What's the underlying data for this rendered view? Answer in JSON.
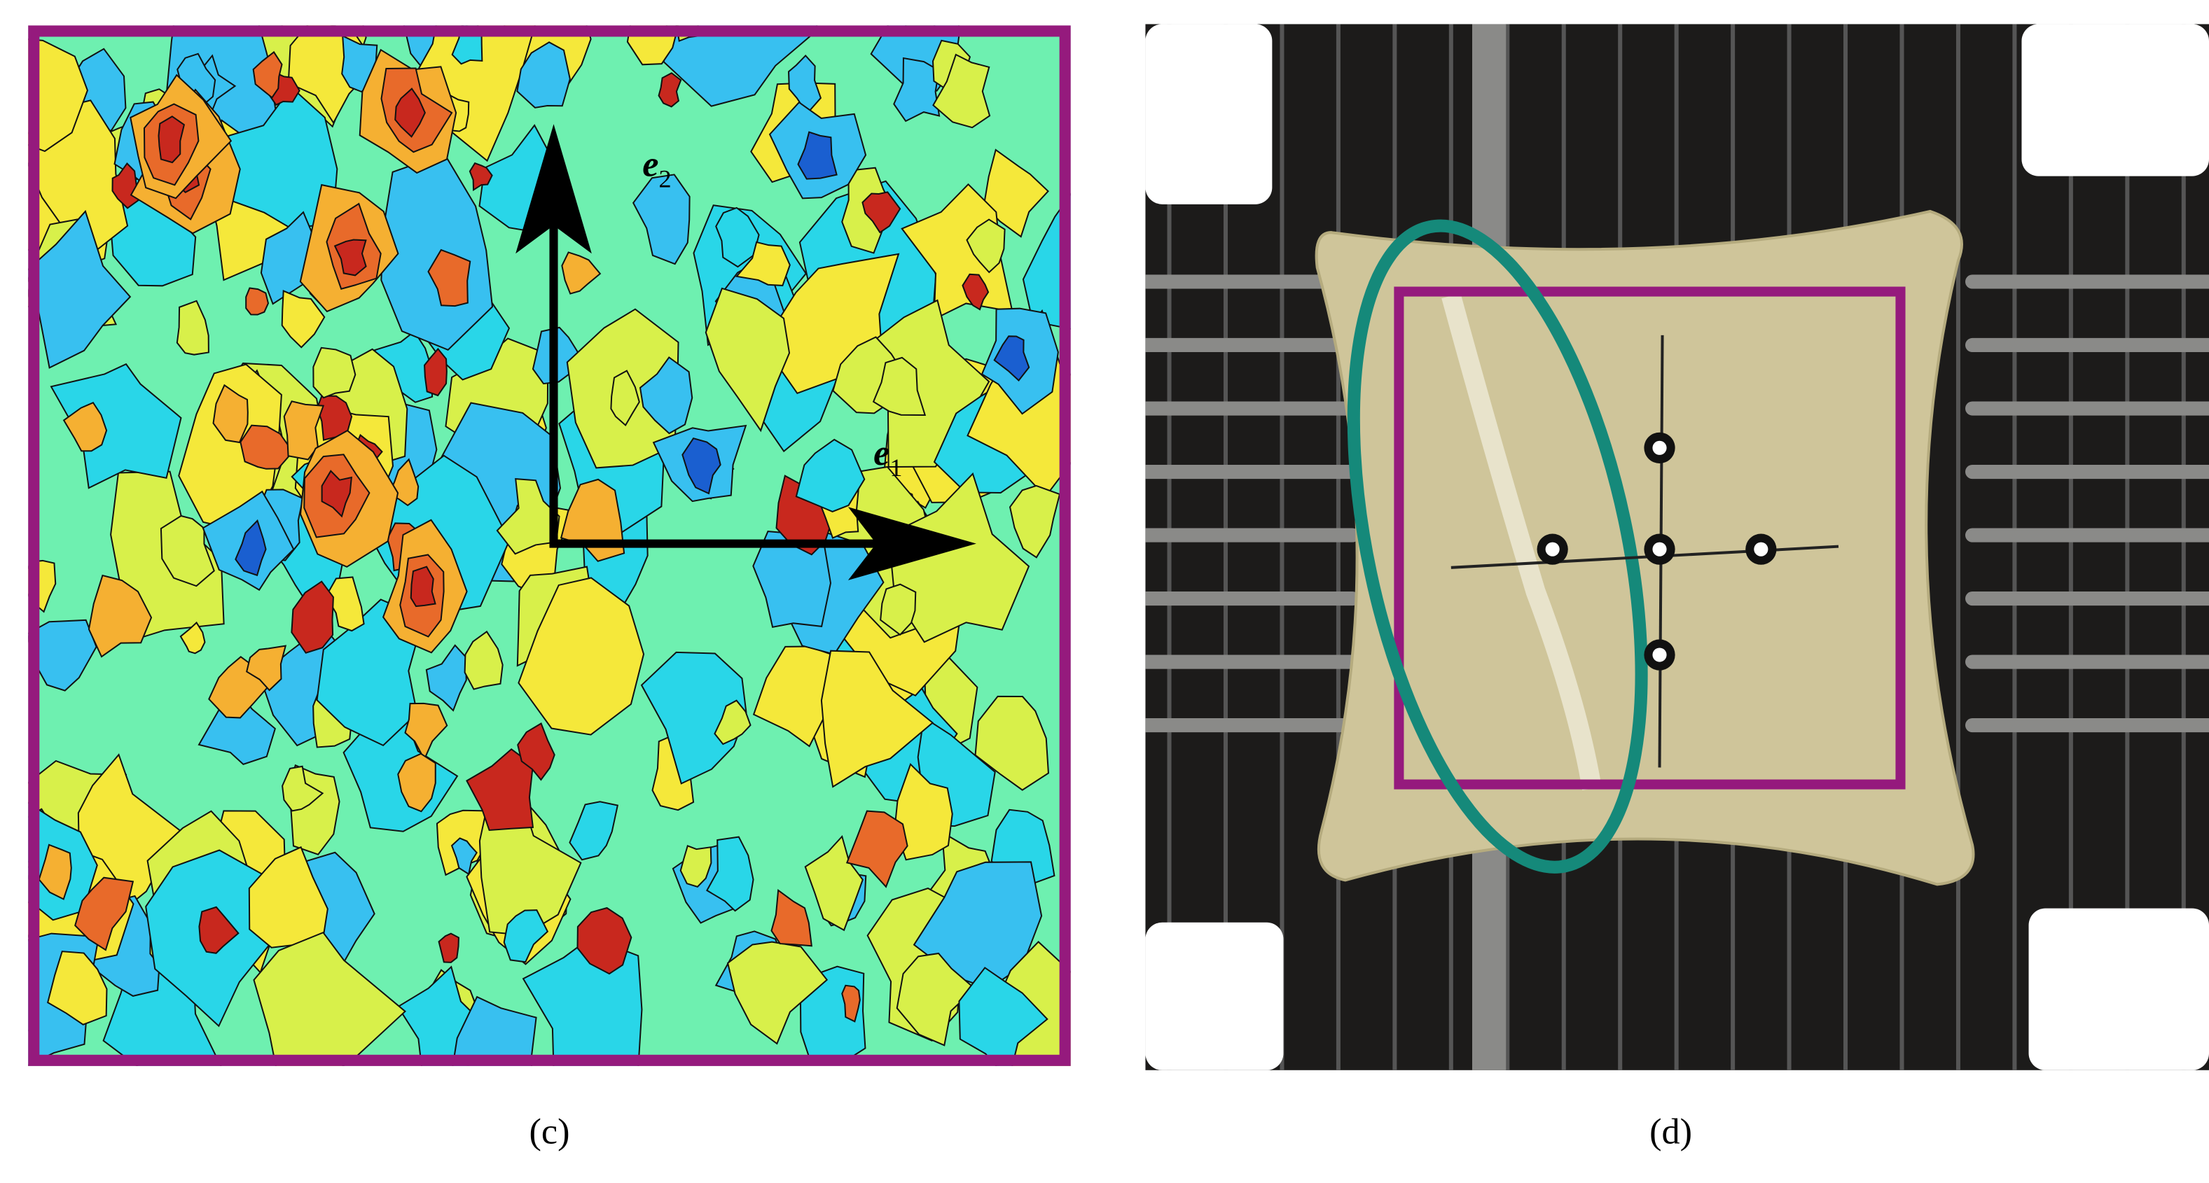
{
  "panels": [
    {
      "label": "(c)",
      "axes": [
        {
          "symbol": "e",
          "subscript": "1"
        },
        {
          "symbol": "e",
          "subscript": "2"
        }
      ]
    },
    {
      "label": "(d)"
    }
  ]
}
